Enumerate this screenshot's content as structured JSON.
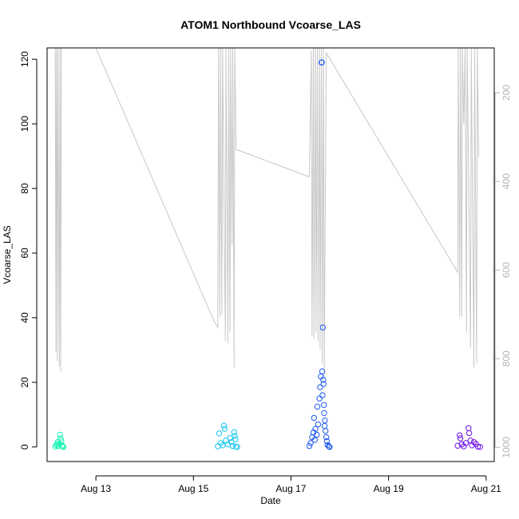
{
  "chart_data": {
    "type": "scatter",
    "title": "ATOM1 Northbound Vcoarse_LAS",
    "xlabel": "Date",
    "ylabel": "Vcoarse_LAS",
    "xlim": [
      "2023-08-12T00:00",
      "2023-08-21T04:00"
    ],
    "ylim": [
      -4.5,
      123.5
    ],
    "yticks": [
      0,
      20,
      40,
      60,
      80,
      100,
      120
    ],
    "xticks": [
      {
        "label": "Aug 13",
        "date": "2023-08-13"
      },
      {
        "label": "Aug 15",
        "date": "2023-08-15"
      },
      {
        "label": "Aug 17",
        "date": "2023-08-17"
      },
      {
        "label": "Aug 19",
        "date": "2023-08-19"
      },
      {
        "label": "Aug 21",
        "date": "2023-08-21"
      }
    ],
    "secondary_axis": {
      "side": "right",
      "reversed": true,
      "ticks": [
        200,
        400,
        600,
        800,
        1000
      ],
      "range": [
        99,
        1032
      ],
      "color": "#b4b4b4"
    },
    "series": [
      {
        "color": "#19f5b4",
        "values": [
          {
            "x": "2023-08-12T04:00",
            "y": 0.1
          },
          {
            "x": "2023-08-12T04:30",
            "y": 0.6
          },
          {
            "x": "2023-08-12T05:00",
            "y": 1.0
          },
          {
            "x": "2023-08-12T05:30",
            "y": 0.3
          },
          {
            "x": "2023-08-12T06:00",
            "y": 0.8
          },
          {
            "x": "2023-08-12T06:20",
            "y": 3.8
          },
          {
            "x": "2023-08-12T06:40",
            "y": 2.6
          },
          {
            "x": "2023-08-12T07:00",
            "y": 1.8
          },
          {
            "x": "2023-08-12T07:20",
            "y": 0.5
          },
          {
            "x": "2023-08-12T07:40",
            "y": 0.2
          },
          {
            "x": "2023-08-12T08:00",
            "y": 0.0
          },
          {
            "x": "2023-08-12T05:20",
            "y": 1.6
          }
        ]
      },
      {
        "color": "#19c8f0",
        "values": [
          {
            "x": "2023-08-15T12:00",
            "y": 0.2
          },
          {
            "x": "2023-08-15T12:40",
            "y": 4.2
          },
          {
            "x": "2023-08-15T13:30",
            "y": 1.2
          },
          {
            "x": "2023-08-15T14:20",
            "y": 0.5
          },
          {
            "x": "2023-08-15T15:00",
            "y": 6.6
          },
          {
            "x": "2023-08-15T15:20",
            "y": 5.6
          },
          {
            "x": "2023-08-15T16:00",
            "y": 2.0
          },
          {
            "x": "2023-08-15T17:00",
            "y": 0.8
          },
          {
            "x": "2023-08-15T18:00",
            "y": 2.8
          },
          {
            "x": "2023-08-15T18:40",
            "y": 1.5
          },
          {
            "x": "2023-08-15T19:20",
            "y": 0.3
          },
          {
            "x": "2023-08-15T20:00",
            "y": 4.6
          },
          {
            "x": "2023-08-15T20:20",
            "y": 3.4
          },
          {
            "x": "2023-08-15T20:40",
            "y": 2.4
          },
          {
            "x": "2023-08-15T21:00",
            "y": 0.1
          },
          {
            "x": "2023-08-15T21:30",
            "y": 0.0
          }
        ]
      },
      {
        "color": "#1e5af0",
        "values": [
          {
            "x": "2023-08-17T09:00",
            "y": 0.3
          },
          {
            "x": "2023-08-17T09:40",
            "y": 1.2
          },
          {
            "x": "2023-08-17T10:20",
            "y": 3.0
          },
          {
            "x": "2023-08-17T11:00",
            "y": 4.5
          },
          {
            "x": "2023-08-17T11:20",
            "y": 9.0
          },
          {
            "x": "2023-08-17T11:40",
            "y": 2.2
          },
          {
            "x": "2023-08-17T12:00",
            "y": 5.6
          },
          {
            "x": "2023-08-17T12:40",
            "y": 3.8
          },
          {
            "x": "2023-08-17T13:00",
            "y": 12.5
          },
          {
            "x": "2023-08-17T13:20",
            "y": 7.0
          },
          {
            "x": "2023-08-17T14:00",
            "y": 15.0
          },
          {
            "x": "2023-08-17T14:20",
            "y": 18.5
          },
          {
            "x": "2023-08-17T14:40",
            "y": 21.8
          },
          {
            "x": "2023-08-17T15:00",
            "y": 119.0
          },
          {
            "x": "2023-08-17T15:10",
            "y": 119.0
          },
          {
            "x": "2023-08-17T15:20",
            "y": 23.4
          },
          {
            "x": "2023-08-17T15:30",
            "y": 16.0
          },
          {
            "x": "2023-08-17T15:40",
            "y": 37.0
          },
          {
            "x": "2023-08-17T16:00",
            "y": 19.5
          },
          {
            "x": "2023-08-17T16:10",
            "y": 13.0
          },
          {
            "x": "2023-08-17T16:20",
            "y": 10.5
          },
          {
            "x": "2023-08-17T16:40",
            "y": 8.2
          },
          {
            "x": "2023-08-17T17:00",
            "y": 5.0
          },
          {
            "x": "2023-08-17T17:20",
            "y": 3.0
          },
          {
            "x": "2023-08-17T17:40",
            "y": 1.8
          },
          {
            "x": "2023-08-17T18:00",
            "y": 0.6
          },
          {
            "x": "2023-08-17T18:40",
            "y": 0.2
          },
          {
            "x": "2023-08-17T19:00",
            "y": 0.0
          },
          {
            "x": "2023-08-17T15:50",
            "y": 20.8
          },
          {
            "x": "2023-08-17T16:30",
            "y": 6.5
          }
        ]
      },
      {
        "color": "#6e14e6",
        "values": [
          {
            "x": "2023-08-20T10:00",
            "y": 0.4
          },
          {
            "x": "2023-08-20T11:00",
            "y": 3.6
          },
          {
            "x": "2023-08-20T11:20",
            "y": 2.7
          },
          {
            "x": "2023-08-20T12:00",
            "y": 0.8
          },
          {
            "x": "2023-08-20T13:00",
            "y": 0.2
          },
          {
            "x": "2023-08-20T14:00",
            "y": 1.2
          },
          {
            "x": "2023-08-20T15:20",
            "y": 5.8
          },
          {
            "x": "2023-08-20T15:40",
            "y": 4.3
          },
          {
            "x": "2023-08-20T16:20",
            "y": 2.0
          },
          {
            "x": "2023-08-20T17:00",
            "y": 0.5
          },
          {
            "x": "2023-08-20T18:00",
            "y": 1.5
          },
          {
            "x": "2023-08-20T19:00",
            "y": 0.9
          },
          {
            "x": "2023-08-20T20:00",
            "y": 0.1
          },
          {
            "x": "2023-08-20T21:00",
            "y": 0.0
          }
        ]
      }
    ],
    "secondary_line": {
      "color": "#c8c8c8",
      "points": [
        {
          "x": "2023-08-12T04:00",
          "y": 100
        },
        {
          "x": "2023-08-12T04:10",
          "y": 400
        },
        {
          "x": "2023-08-12T04:20",
          "y": 785
        },
        {
          "x": "2023-08-12T04:30",
          "y": 300
        },
        {
          "x": "2023-08-12T04:40",
          "y": 99
        },
        {
          "x": "2023-08-12T05:00",
          "y": 805
        },
        {
          "x": "2023-08-12T05:20",
          "y": 99
        },
        {
          "x": "2023-08-12T06:00",
          "y": 818
        },
        {
          "x": "2023-08-12T06:20",
          "y": 99
        },
        {
          "x": "2023-08-12T06:40",
          "y": 830
        },
        {
          "x": "2023-08-12T07:00",
          "y": 99
        },
        {
          "x": "2023-08-12T07:40",
          "y": 99
        },
        {
          "x": "2023-08-12T08:00",
          "y": 99
        },
        {
          "x": "2023-08-13T00:00",
          "y": 99
        },
        {
          "x": "2023-08-15T10:00",
          "y": 714
        },
        {
          "x": "2023-08-15T12:00",
          "y": 730
        },
        {
          "x": "2023-08-15T12:20",
          "y": 99
        },
        {
          "x": "2023-08-15T13:00",
          "y": 705
        },
        {
          "x": "2023-08-15T13:20",
          "y": 99
        },
        {
          "x": "2023-08-15T14:00",
          "y": 700
        },
        {
          "x": "2023-08-15T14:20",
          "y": 99
        },
        {
          "x": "2023-08-15T15:40",
          "y": 760
        },
        {
          "x": "2023-08-15T16:00",
          "y": 99
        },
        {
          "x": "2023-08-15T17:00",
          "y": 765
        },
        {
          "x": "2023-08-15T17:20",
          "y": 99
        },
        {
          "x": "2023-08-15T18:00",
          "y": 740
        },
        {
          "x": "2023-08-15T18:20",
          "y": 99
        },
        {
          "x": "2023-08-15T19:00",
          "y": 545
        },
        {
          "x": "2023-08-15T19:20",
          "y": 99
        },
        {
          "x": "2023-08-15T20:00",
          "y": 820
        },
        {
          "x": "2023-08-15T20:20",
          "y": 99
        },
        {
          "x": "2023-08-15T21:00",
          "y": 328
        },
        {
          "x": "2023-08-17T09:00",
          "y": 390
        },
        {
          "x": "2023-08-17T10:00",
          "y": 105
        },
        {
          "x": "2023-08-17T10:20",
          "y": 750
        },
        {
          "x": "2023-08-17T11:00",
          "y": 99
        },
        {
          "x": "2023-08-17T11:20",
          "y": 755
        },
        {
          "x": "2023-08-17T12:00",
          "y": 99
        },
        {
          "x": "2023-08-17T12:20",
          "y": 740
        },
        {
          "x": "2023-08-17T13:00",
          "y": 99
        },
        {
          "x": "2023-08-17T13:20",
          "y": 760
        },
        {
          "x": "2023-08-17T14:00",
          "y": 99
        },
        {
          "x": "2023-08-17T14:20",
          "y": 780
        },
        {
          "x": "2023-08-17T15:00",
          "y": 99
        },
        {
          "x": "2023-08-17T15:20",
          "y": 810
        },
        {
          "x": "2023-08-17T16:00",
          "y": 99
        },
        {
          "x": "2023-08-17T16:20",
          "y": 840
        },
        {
          "x": "2023-08-17T17:20",
          "y": 110
        },
        {
          "x": "2023-08-20T10:00",
          "y": 605
        },
        {
          "x": "2023-08-20T10:20",
          "y": 99
        },
        {
          "x": "2023-08-20T11:00",
          "y": 705
        },
        {
          "x": "2023-08-20T11:20",
          "y": 99
        },
        {
          "x": "2023-08-20T12:00",
          "y": 705
        },
        {
          "x": "2023-08-20T12:20",
          "y": 99
        },
        {
          "x": "2023-08-20T13:00",
          "y": 270
        },
        {
          "x": "2023-08-20T13:40",
          "y": 99
        },
        {
          "x": "2023-08-20T14:20",
          "y": 740
        },
        {
          "x": "2023-08-20T14:40",
          "y": 99
        },
        {
          "x": "2023-08-20T16:20",
          "y": 775
        },
        {
          "x": "2023-08-20T16:40",
          "y": 99
        },
        {
          "x": "2023-08-20T18:00",
          "y": 820
        },
        {
          "x": "2023-08-20T18:20",
          "y": 99
        },
        {
          "x": "2023-08-20T19:20",
          "y": 810
        },
        {
          "x": "2023-08-20T19:40",
          "y": 99
        },
        {
          "x": "2023-08-20T20:20",
          "y": 345
        }
      ]
    }
  }
}
